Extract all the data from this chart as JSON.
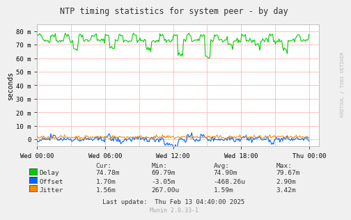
{
  "title": "NTP timing statistics for system peer - by day",
  "ylabel": "seconds",
  "watermark": "RRDTOOL / TOBI OETIKER",
  "munin_version": "Munin 2.0.33-1",
  "last_update": "Last update:  Thu Feb 13 04:40:00 2025",
  "bg_color": "#f0f0f0",
  "plot_bg_color": "#ffffff",
  "yticks": [
    0,
    10,
    20,
    30,
    40,
    50,
    60,
    70,
    80
  ],
  "ytick_labels": [
    "0",
    "10 m",
    "20 m",
    "30 m",
    "40 m",
    "50 m",
    "60 m",
    "70 m",
    "80 m"
  ],
  "ylim": [
    -5,
    85
  ],
  "xtick_labels": [
    "Wed 00:00",
    "Wed 06:00",
    "Wed 12:00",
    "Wed 18:00",
    "Thu 00:00"
  ],
  "delay_color": "#00cc00",
  "offset_color": "#0066ff",
  "jitter_color": "#ff8800",
  "stats": {
    "headers": [
      "Cur:",
      "Min:",
      "Avg:",
      "Max:"
    ],
    "delay": [
      "74.78m",
      "69.79m",
      "74.90m",
      "79.67m"
    ],
    "offset": [
      "1.70m",
      "-3.05m",
      "-468.26u",
      "2.90m"
    ],
    "jitter": [
      "1.56m",
      "267.00u",
      "1.59m",
      "3.42m"
    ]
  },
  "num_points": 300
}
